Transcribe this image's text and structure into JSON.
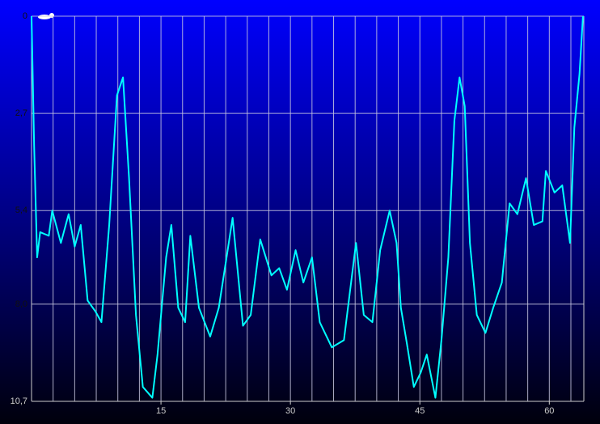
{
  "chart_data": {
    "type": "line",
    "x": [
      0,
      0.3,
      0.65,
      1.0,
      2.0,
      2.4,
      3.4,
      4.3,
      5.0,
      5.7,
      6.5,
      7.4,
      8.1,
      9.0,
      9.9,
      10.6,
      11.3,
      12.1,
      12.9,
      14.0,
      14.6,
      15.6,
      16.2,
      17.0,
      17.8,
      18.4,
      19.4,
      20.7,
      21.7,
      22.6,
      23.3,
      24.5,
      25.4,
      26.5,
      27.8,
      28.7,
      29.6,
      30.6,
      31.5,
      32.5,
      33.4,
      34.8,
      36.2,
      37.6,
      38.5,
      39.5,
      40.4,
      41.5,
      42.3,
      42.8,
      43.5,
      44.3,
      45.1,
      45.8,
      46.8,
      47.5,
      48.3,
      49.0,
      49.6,
      50.2,
      50.8,
      51.6,
      52.6,
      53.5,
      54.5,
      55.4,
      56.3,
      57.3,
      58.2,
      59.2,
      59.6,
      60.6,
      61.5,
      62.4,
      62.9,
      63.5,
      63.9
    ],
    "series": [
      {
        "color": "#00ffff",
        "values": [
          0,
          3.6,
          6.7,
          6.0,
          6.1,
          5.4,
          6.3,
          5.5,
          6.4,
          5.8,
          7.9,
          8.2,
          8.5,
          5.8,
          2.2,
          1.7,
          4.5,
          8.3,
          10.3,
          10.6,
          9.4,
          6.7,
          5.8,
          8.1,
          8.5,
          6.1,
          8.1,
          8.9,
          8.1,
          6.7,
          5.6,
          8.6,
          8.3,
          6.2,
          7.2,
          7.0,
          7.6,
          6.5,
          7.4,
          6.7,
          8.5,
          9.2,
          9.0,
          6.3,
          8.3,
          8.5,
          6.5,
          5.4,
          6.3,
          8.1,
          9.1,
          10.3,
          9.9,
          9.4,
          10.6,
          9.0,
          6.7,
          2.9,
          1.7,
          2.5,
          6.3,
          8.3,
          8.8,
          8.1,
          7.4,
          5.2,
          5.5,
          4.5,
          5.8,
          5.7,
          4.3,
          4.9,
          4.7,
          6.3,
          3.1,
          1.6,
          0
        ]
      }
    ],
    "xlim": [
      0,
      64
    ],
    "xticks": [
      15,
      30,
      45,
      60
    ],
    "x_grid": [
      2.5,
      5,
      7.5,
      10,
      12.5,
      15,
      17.5,
      20,
      22.5,
      25,
      27.5,
      30,
      32.5,
      35,
      37.5,
      40,
      42.5,
      45,
      47.5,
      50,
      52.5,
      55,
      57.5,
      60,
      62.5
    ],
    "ylim": [
      0,
      10.7
    ],
    "y_inverted": true,
    "yticks": [
      {
        "value": 0,
        "label": "0"
      },
      {
        "value": 2.7,
        "label": "2,7"
      },
      {
        "value": 5.4,
        "label": "5,4"
      },
      {
        "value": 8.0,
        "label": "8,0"
      },
      {
        "value": 10.7,
        "label": "10,7"
      }
    ],
    "grid": true
  }
}
